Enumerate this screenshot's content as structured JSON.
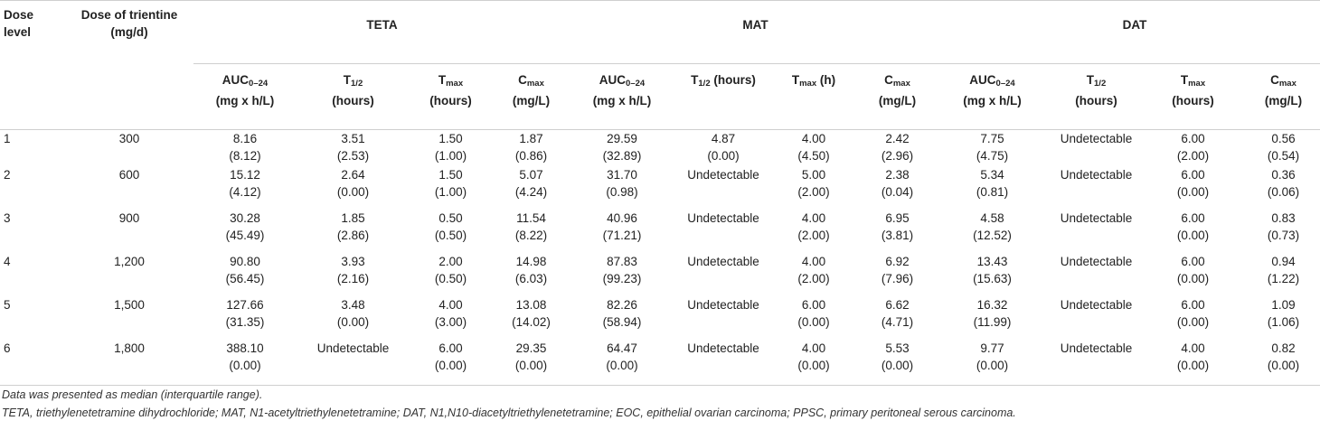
{
  "header": {
    "dose_level": [
      "Dose",
      "level"
    ],
    "dose_trientine": [
      "Dose of trientine",
      "(mg/d)"
    ],
    "groups": [
      "TETA",
      "MAT",
      "DAT"
    ],
    "sub_columns": [
      {
        "main": "AUC",
        "sub": "0–24",
        "unit": "(mg x h/L)"
      },
      {
        "main": "T",
        "sub": "1/2",
        "unit": "(hours)"
      },
      {
        "main": "T",
        "sub": "max",
        "unit": "(hours)"
      },
      {
        "main": "C",
        "sub": "max",
        "unit": "(mg/L)"
      },
      {
        "main": "AUC",
        "sub": "0–24",
        "unit": "(mg x h/L)"
      },
      {
        "main": "T",
        "sub": "1/2",
        "unit": " (hours)"
      },
      {
        "main": "T",
        "sub": "max",
        "unit": " (h)"
      },
      {
        "main": "C",
        "sub": "max",
        "unit": "(mg/L)"
      },
      {
        "main": "AUC",
        "sub": "0–24",
        "unit": "(mg x h/L)"
      },
      {
        "main": "T",
        "sub": "1/2",
        "unit": "(hours)"
      },
      {
        "main": "T",
        "sub": "max",
        "unit": "(hours)"
      },
      {
        "main": "C",
        "sub": "max",
        "unit": "(mg/L)"
      }
    ]
  },
  "rows": [
    {
      "level": "1",
      "dose": "300",
      "cells": [
        [
          "8.16",
          "(8.12)"
        ],
        [
          "3.51",
          "(2.53)"
        ],
        [
          "1.50",
          "(1.00)"
        ],
        [
          "1.87",
          "(0.86)"
        ],
        [
          "29.59",
          "(32.89)"
        ],
        [
          "4.87",
          "(0.00)"
        ],
        [
          "4.00",
          "(4.50)"
        ],
        [
          "2.42",
          "(2.96)"
        ],
        [
          "7.75",
          "(4.75)"
        ],
        [
          "Undetectable",
          ""
        ],
        [
          "6.00",
          "(2.00)"
        ],
        [
          "0.56",
          "(0.54)"
        ]
      ]
    },
    {
      "level": "2",
      "dose": "600",
      "cells": [
        [
          "15.12",
          "(4.12)"
        ],
        [
          "2.64",
          "(0.00)"
        ],
        [
          "1.50",
          "(1.00)"
        ],
        [
          "5.07",
          "(4.24)"
        ],
        [
          "31.70",
          "(0.98)"
        ],
        [
          "Undetectable",
          ""
        ],
        [
          "5.00",
          "(2.00)"
        ],
        [
          "2.38",
          "(0.04)"
        ],
        [
          "5.34",
          "(0.81)"
        ],
        [
          "Undetectable",
          ""
        ],
        [
          "6.00",
          "(0.00)"
        ],
        [
          "0.36",
          "(0.06)"
        ]
      ]
    },
    {
      "level": "3",
      "dose": "900",
      "cells": [
        [
          "30.28",
          "(45.49)"
        ],
        [
          "1.85",
          "(2.86)"
        ],
        [
          "0.50",
          "(0.50)"
        ],
        [
          "11.54",
          "(8.22)"
        ],
        [
          "40.96",
          "(71.21)"
        ],
        [
          "Undetectable",
          ""
        ],
        [
          "4.00",
          "(2.00)"
        ],
        [
          "6.95",
          "(3.81)"
        ],
        [
          "4.58",
          "(12.52)"
        ],
        [
          "Undetectable",
          ""
        ],
        [
          "6.00",
          "(0.00)"
        ],
        [
          "0.83",
          "(0.73)"
        ]
      ]
    },
    {
      "level": "4",
      "dose": "1,200",
      "cells": [
        [
          "90.80",
          "(56.45)"
        ],
        [
          "3.93",
          "(2.16)"
        ],
        [
          "2.00",
          "(0.50)"
        ],
        [
          "14.98",
          "(6.03)"
        ],
        [
          "87.83",
          "(99.23)"
        ],
        [
          "Undetectable",
          ""
        ],
        [
          "4.00",
          "(2.00)"
        ],
        [
          "6.92",
          "(7.96)"
        ],
        [
          "13.43",
          "(15.63)"
        ],
        [
          "Undetectable",
          ""
        ],
        [
          "6.00",
          "(0.00)"
        ],
        [
          "0.94",
          "(1.22)"
        ]
      ]
    },
    {
      "level": "5",
      "dose": "1,500",
      "cells": [
        [
          "127.66",
          "(31.35)"
        ],
        [
          "3.48",
          "(0.00)"
        ],
        [
          "4.00",
          "(3.00)"
        ],
        [
          "13.08",
          "(14.02)"
        ],
        [
          "82.26",
          "(58.94)"
        ],
        [
          "Undetectable",
          ""
        ],
        [
          "6.00",
          "(0.00)"
        ],
        [
          "6.62",
          "(4.71)"
        ],
        [
          "16.32",
          "(11.99)"
        ],
        [
          "Undetectable",
          ""
        ],
        [
          "6.00",
          "(0.00)"
        ],
        [
          "1.09",
          "(1.06)"
        ]
      ]
    },
    {
      "level": "6",
      "dose": "1,800",
      "cells": [
        [
          "388.10",
          "(0.00)"
        ],
        [
          "Undetectable",
          ""
        ],
        [
          "6.00",
          "(0.00)"
        ],
        [
          "29.35",
          "(0.00)"
        ],
        [
          "64.47",
          "(0.00)"
        ],
        [
          "Undetectable",
          ""
        ],
        [
          "4.00",
          "(0.00)"
        ],
        [
          "5.53",
          "(0.00)"
        ],
        [
          "9.77",
          "(0.00)"
        ],
        [
          "Undetectable",
          ""
        ],
        [
          "4.00",
          "(0.00)"
        ],
        [
          "0.82",
          "(0.00)"
        ]
      ]
    }
  ],
  "footnotes": [
    "Data was presented as median (interquartile range).",
    "TETA, triethylenetetramine dihydrochloride; MAT, N1-acetyltriethylenetetramine; DAT, N1,N10-diacetyltriethylenetetramine; EOC, epithelial ovarian carcinoma; PPSC, primary peritoneal serous carcinoma."
  ]
}
